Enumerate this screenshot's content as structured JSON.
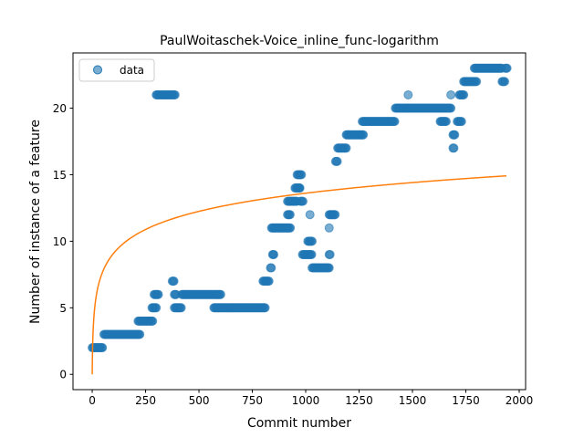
{
  "chart_data": {
    "type": "scatter",
    "title": "PaulWoitaschek-Voice_inline_func-logarithm",
    "xlabel": "Commit number",
    "ylabel": "Number of instance of a feature",
    "xlim": [
      -90,
      2030
    ],
    "ylim": [
      -1.15,
      24.15
    ],
    "xticks": [
      0,
      250,
      500,
      750,
      1000,
      1250,
      1500,
      1750,
      2000
    ],
    "xtick_labels": [
      "0",
      "250",
      "500",
      "750",
      "1000",
      "1250",
      "1500",
      "1750",
      "2000"
    ],
    "yticks": [
      0,
      5,
      10,
      15,
      20
    ],
    "ytick_labels": [
      "0",
      "5",
      "10",
      "15",
      "20"
    ],
    "grid": false,
    "legend": {
      "position": "top-left",
      "entries": [
        "data"
      ]
    },
    "colors": {
      "data": "#1f77b4",
      "fit": "#ff7f0e"
    },
    "series": [
      {
        "name": "data",
        "kind": "points",
        "segments": [
          [
            0,
            50,
            2
          ],
          [
            55,
            225,
            3
          ],
          [
            215,
            285,
            4
          ],
          [
            280,
            300,
            5
          ],
          [
            290,
            310,
            6
          ],
          [
            300,
            390,
            21
          ],
          [
            375,
            385,
            7
          ],
          [
            385,
            420,
            5
          ],
          [
            385,
            395,
            6
          ],
          [
            420,
            590,
            6
          ],
          [
            590,
            605,
            6
          ],
          [
            570,
            810,
            5
          ],
          [
            800,
            830,
            7
          ],
          [
            835,
            840,
            8
          ],
          [
            845,
            850,
            9
          ],
          [
            840,
            930,
            11
          ],
          [
            915,
            930,
            12
          ],
          [
            915,
            960,
            13
          ],
          [
            950,
            970,
            14
          ],
          [
            960,
            980,
            15
          ],
          [
            965,
            975,
            14
          ],
          [
            975,
            990,
            13
          ],
          [
            985,
            1020,
            9
          ],
          [
            1010,
            1030,
            10
          ],
          [
            1020,
            1030,
            9
          ],
          [
            1030,
            1110,
            8
          ],
          [
            1110,
            1115,
            9
          ],
          [
            1110,
            1140,
            12
          ],
          [
            1140,
            1150,
            16
          ],
          [
            1150,
            1190,
            17
          ],
          [
            1190,
            1270,
            18
          ],
          [
            1265,
            1420,
            19
          ],
          [
            1420,
            1480,
            20
          ],
          [
            1480,
            1680,
            20
          ],
          [
            1630,
            1660,
            19
          ],
          [
            1690,
            1700,
            18
          ],
          [
            1690,
            1695,
            17
          ],
          [
            1710,
            1730,
            19
          ],
          [
            1720,
            1740,
            21
          ],
          [
            1740,
            1800,
            22
          ],
          [
            1790,
            1920,
            23
          ],
          [
            1920,
            1935,
            22
          ],
          [
            1935,
            1945,
            23
          ]
        ],
        "extra_points": [
          [
            1480,
            21
          ],
          [
            1680,
            21
          ],
          [
            1110,
            11
          ],
          [
            1020,
            12
          ],
          [
            850,
            9
          ]
        ]
      },
      {
        "name": "fit",
        "kind": "curve",
        "model": "a*ln(x+1)",
        "a": 1.97,
        "x_range": [
          0,
          1940
        ]
      }
    ]
  }
}
